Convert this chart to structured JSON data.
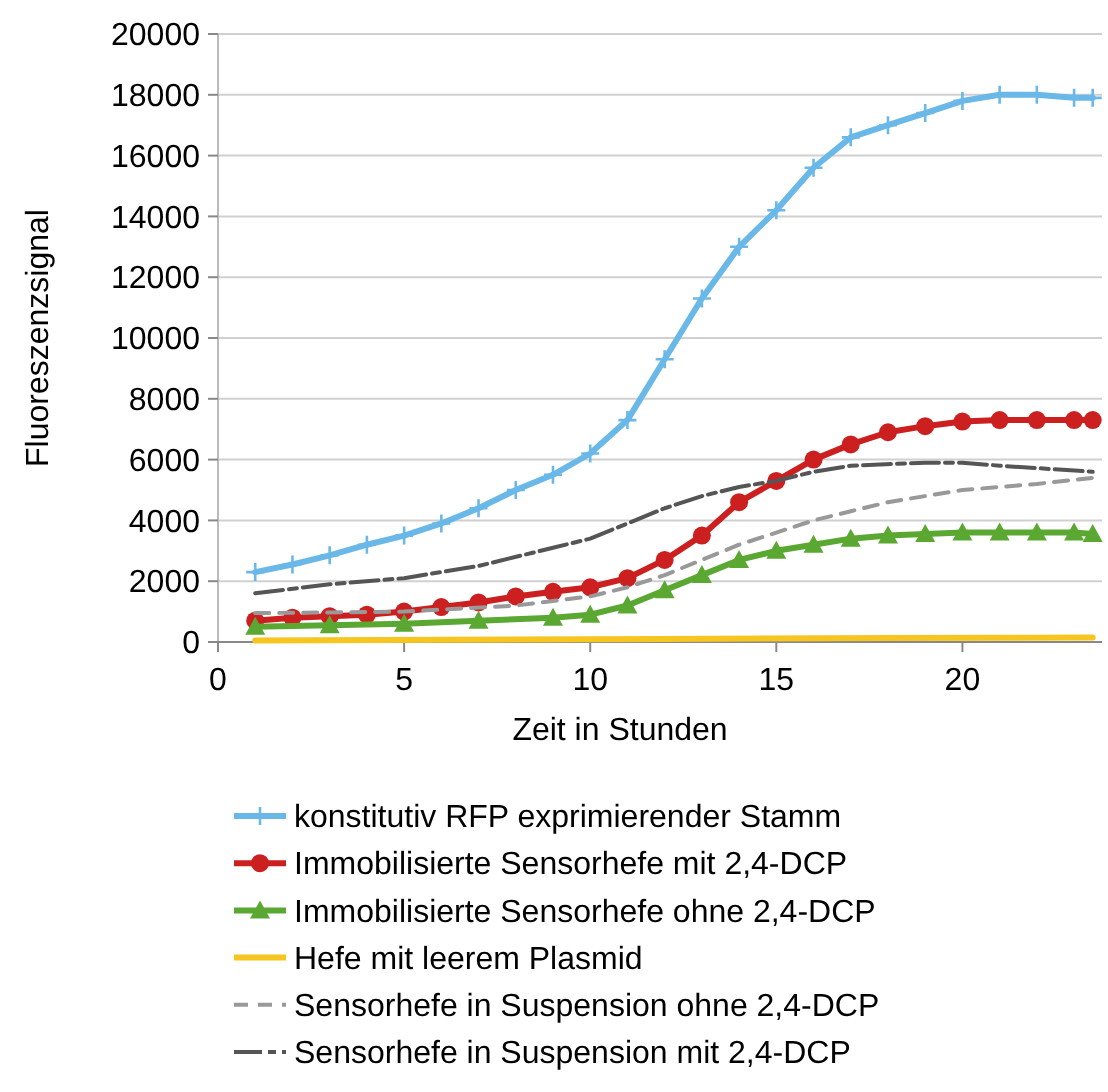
{
  "chart_data": {
    "type": "line",
    "xlabel": "Zeit in Stunden",
    "ylabel": "Fluoreszenzsignal",
    "xlim": [
      0,
      23.75
    ],
    "xticks": [
      0,
      5,
      10,
      15,
      20
    ],
    "ylim": [
      0,
      20000
    ],
    "yticks": [
      0,
      2000,
      4000,
      6000,
      8000,
      10000,
      12000,
      14000,
      16000,
      18000,
      20000
    ],
    "grid": "y",
    "legend": "bottom",
    "series": [
      {
        "name": "konstitutiv RFP exprimierender Stamm",
        "color": "#6ab8e8",
        "marker": "cross",
        "line_style": "solid",
        "x": [
          1,
          2,
          3,
          4,
          5,
          6,
          7,
          8,
          9,
          10,
          11,
          12,
          13,
          14,
          15,
          16,
          17,
          18,
          19,
          20,
          21,
          22,
          23,
          23.5
        ],
        "values": [
          2300,
          2550,
          2850,
          3200,
          3500,
          3900,
          4400,
          5000,
          5500,
          6200,
          7300,
          9300,
          11300,
          13000,
          14200,
          15600,
          16600,
          17000,
          17400,
          17800,
          18000,
          18000,
          17900,
          17900
        ]
      },
      {
        "name": "Immobilisierte Sensorhefe mit 2,4-DCP",
        "color": "#cc1f1f",
        "marker": "circle",
        "line_style": "solid",
        "x": [
          1,
          2,
          3,
          4,
          5,
          6,
          7,
          8,
          9,
          10,
          11,
          12,
          13,
          14,
          15,
          16,
          17,
          18,
          19,
          20,
          21,
          22,
          23,
          23.5
        ],
        "values": [
          700,
          800,
          850,
          900,
          1000,
          1150,
          1300,
          1500,
          1650,
          1800,
          2100,
          2700,
          3500,
          4600,
          5300,
          6000,
          6500,
          6900,
          7100,
          7250,
          7300,
          7300,
          7300,
          7300
        ]
      },
      {
        "name": "Immobilisierte Sensorhefe ohne 2,4-DCP",
        "color": "#5aa832",
        "marker": "triangle",
        "line_style": "solid",
        "x": [
          1,
          3,
          5,
          7,
          9,
          10,
          11,
          12,
          13,
          14,
          15,
          16,
          17,
          18,
          19,
          20,
          21,
          22,
          23,
          23.5
        ],
        "values": [
          500,
          550,
          600,
          700,
          800,
          900,
          1200,
          1700,
          2200,
          2700,
          3000,
          3200,
          3400,
          3500,
          3550,
          3600,
          3600,
          3600,
          3600,
          3550
        ]
      },
      {
        "name": "Hefe mit leerem Plasmid",
        "color": "#f7c520",
        "marker": "none",
        "line_style": "solid",
        "x": [
          1,
          6,
          12,
          18,
          23.5
        ],
        "values": [
          50,
          70,
          100,
          130,
          150
        ]
      },
      {
        "name": "Sensorhefe in Suspension ohne 2,4-DCP",
        "color": "#999999",
        "marker": "none",
        "line_style": "dashed",
        "x": [
          1,
          5,
          8,
          10,
          11,
          12,
          13,
          14,
          15,
          16,
          17,
          18,
          19,
          20,
          21,
          22,
          23.5
        ],
        "values": [
          950,
          1000,
          1200,
          1500,
          1800,
          2200,
          2700,
          3200,
          3600,
          4000,
          4300,
          4600,
          4800,
          5000,
          5100,
          5200,
          5400
        ]
      },
      {
        "name": "Sensorhefe in Suspension mit 2,4-DCP",
        "color": "#555555",
        "marker": "none",
        "line_style": "dashed",
        "x": [
          1,
          3,
          5,
          7,
          9,
          10,
          11,
          12,
          13,
          14,
          15,
          16,
          17,
          19,
          20,
          21,
          23.5
        ],
        "values": [
          1600,
          1900,
          2100,
          2500,
          3100,
          3400,
          3900,
          4400,
          4800,
          5100,
          5300,
          5600,
          5800,
          5900,
          5900,
          5800,
          5600
        ]
      }
    ]
  }
}
